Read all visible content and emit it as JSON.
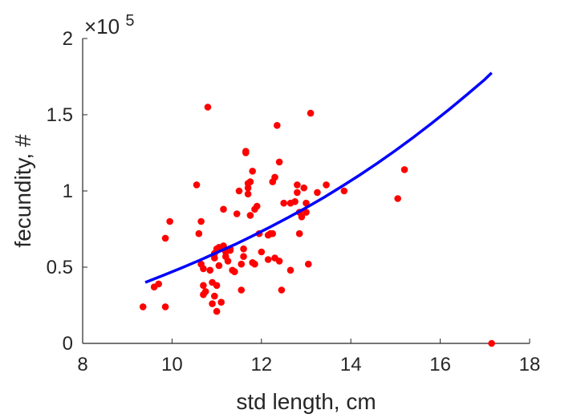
{
  "chart_data": {
    "type": "scatter",
    "title": "",
    "xlabel": "std length, cm",
    "ylabel": "fecundity, #",
    "xlim": [
      8,
      18
    ],
    "ylim": [
      0,
      200000
    ],
    "xticks": [
      8,
      10,
      12,
      14,
      16,
      18
    ],
    "yticks": [
      0,
      50000,
      100000,
      150000,
      200000
    ],
    "ytick_labels": [
      "0",
      "0.5",
      "1",
      "1.5",
      "2"
    ],
    "y_multiplier": {
      "prefix": "×10",
      "exponent": "5"
    },
    "grid": false,
    "legend": "none",
    "colors": {
      "points": "#ff0000",
      "fit": "#0000ff",
      "axis": "#262626"
    },
    "series": [
      {
        "type": "scatter",
        "x": [
          9.35,
          9.6,
          9.7,
          9.85,
          9.85,
          9.95,
          10.55,
          10.6,
          10.65,
          10.65,
          10.7,
          10.7,
          10.7,
          10.75,
          10.8,
          10.85,
          10.9,
          10.9,
          10.95,
          10.95,
          10.95,
          11.0,
          11.0,
          11.0,
          11.05,
          11.05,
          11.1,
          11.15,
          11.15,
          11.2,
          11.2,
          11.25,
          11.3,
          11.3,
          11.35,
          11.4,
          11.45,
          11.5,
          11.55,
          11.55,
          11.6,
          11.6,
          11.65,
          11.65,
          11.7,
          11.7,
          11.7,
          11.75,
          11.75,
          11.8,
          11.8,
          11.85,
          11.85,
          11.9,
          11.95,
          12.0,
          12.15,
          12.15,
          12.2,
          12.25,
          12.25,
          12.3,
          12.3,
          12.35,
          12.4,
          12.4,
          12.45,
          12.5,
          12.65,
          12.65,
          12.75,
          12.8,
          12.8,
          12.85,
          12.85,
          12.9,
          12.95,
          13.0,
          13.0,
          13.05,
          13.1,
          13.25,
          13.45,
          13.85,
          15.05,
          15.2,
          17.15
        ],
        "y": [
          24000,
          37000,
          39000,
          69000,
          24000,
          80000,
          104000,
          72000,
          80000,
          52000,
          49000,
          38000,
          32000,
          34000,
          155000,
          48000,
          40000,
          26000,
          59000,
          56000,
          31000,
          62000,
          38000,
          21000,
          63000,
          51000,
          27000,
          88000,
          64000,
          57000,
          60000,
          54000,
          62000,
          61000,
          48000,
          47000,
          85000,
          100000,
          52000,
          35000,
          62000,
          57000,
          125000,
          126000,
          105000,
          102000,
          98000,
          106000,
          84000,
          53000,
          113000,
          88000,
          52000,
          90000,
          72000,
          60000,
          55000,
          71000,
          72000,
          72000,
          106000,
          109000,
          56000,
          143000,
          54000,
          119000,
          35000,
          92000,
          48000,
          92000,
          93000,
          99000,
          104000,
          72000,
          86000,
          83000,
          102000,
          92000,
          86000,
          52000,
          151000,
          99000,
          104000,
          100000,
          95000,
          114000,
          0
        ]
      },
      {
        "type": "line",
        "x": [
          9.4,
          9.8,
          10.2,
          10.6,
          11.0,
          11.4,
          11.8,
          12.2,
          12.6,
          13.0,
          13.4,
          13.8,
          14.2,
          14.6,
          15.0,
          15.4,
          15.8,
          16.2,
          16.6,
          17.0,
          17.15
        ],
        "y": [
          40000,
          44600,
          49300,
          54300,
          59500,
          64800,
          70500,
          76400,
          82600,
          89000,
          95800,
          103000,
          110500,
          118300,
          126600,
          135200,
          144200,
          153500,
          163200,
          173200,
          177500
        ]
      }
    ]
  }
}
